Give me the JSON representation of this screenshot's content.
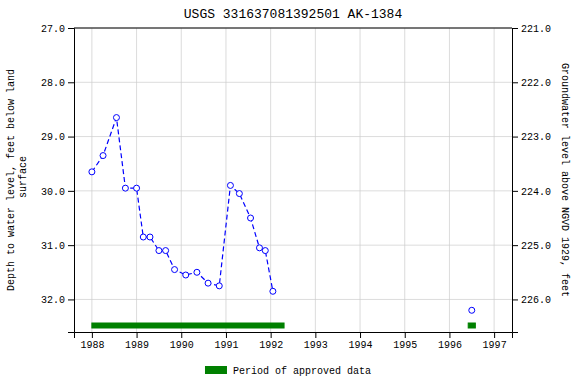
{
  "chart_data": {
    "type": "line",
    "title": "USGS 331637081392501 AK-1384",
    "ylabel": "Depth to water level, feet below land\n surface",
    "y2label": "Groundwater level above NGVD 1929, feet",
    "xlim": [
      1987.6,
      1997.4
    ],
    "xticks": [
      1988,
      1989,
      1990,
      1991,
      1992,
      1993,
      1994,
      1995,
      1996,
      1997
    ],
    "ylim": [
      32.6,
      27.0
    ],
    "yticks": [
      {
        "value": 27.0,
        "label": "27.0"
      },
      {
        "value": 28.0,
        "label": "28.0"
      },
      {
        "value": 29.0,
        "label": "29.0"
      },
      {
        "value": 30.0,
        "label": "30.0"
      },
      {
        "value": 31.0,
        "label": "31.0"
      },
      {
        "value": 32.0,
        "label": "32.0"
      }
    ],
    "y2lim": [
      226.6,
      221.0
    ],
    "y2ticks": [
      {
        "value": 221.0,
        "label": "221.0"
      },
      {
        "value": 222.0,
        "label": "222.0"
      },
      {
        "value": 223.0,
        "label": "223.0"
      },
      {
        "value": 224.0,
        "label": "224.0"
      },
      {
        "value": 225.0,
        "label": "225.0"
      },
      {
        "value": 226.0,
        "label": "226.0"
      }
    ],
    "grid": true,
    "legend": "bottom",
    "series": [
      {
        "color": "blue",
        "marker": "circle",
        "line_style": "dashed",
        "x": [
          1988.0,
          1988.25,
          1988.55,
          1988.75,
          1989.0,
          1989.15,
          1989.3,
          1989.5,
          1989.65,
          1989.85,
          1990.1,
          1990.35,
          1990.6,
          1990.85,
          1991.1,
          1991.3,
          1991.55,
          1991.75,
          1991.88,
          1992.05
        ],
        "values": [
          29.65,
          29.35,
          28.65,
          29.95,
          29.95,
          30.85,
          30.85,
          31.1,
          31.1,
          31.45,
          31.55,
          31.5,
          31.7,
          31.75,
          29.9,
          30.05,
          30.5,
          31.05,
          31.1,
          31.85
        ]
      },
      {
        "color": "blue",
        "marker": "circle",
        "line_style": "none",
        "x": [
          1996.5
        ],
        "values": [
          32.2
        ]
      }
    ],
    "bands": {
      "name": "Period of approved data",
      "color": "#008000",
      "ranges": [
        [
          1988.0,
          1992.3
        ],
        [
          1996.42,
          1996.58
        ]
      ]
    }
  }
}
